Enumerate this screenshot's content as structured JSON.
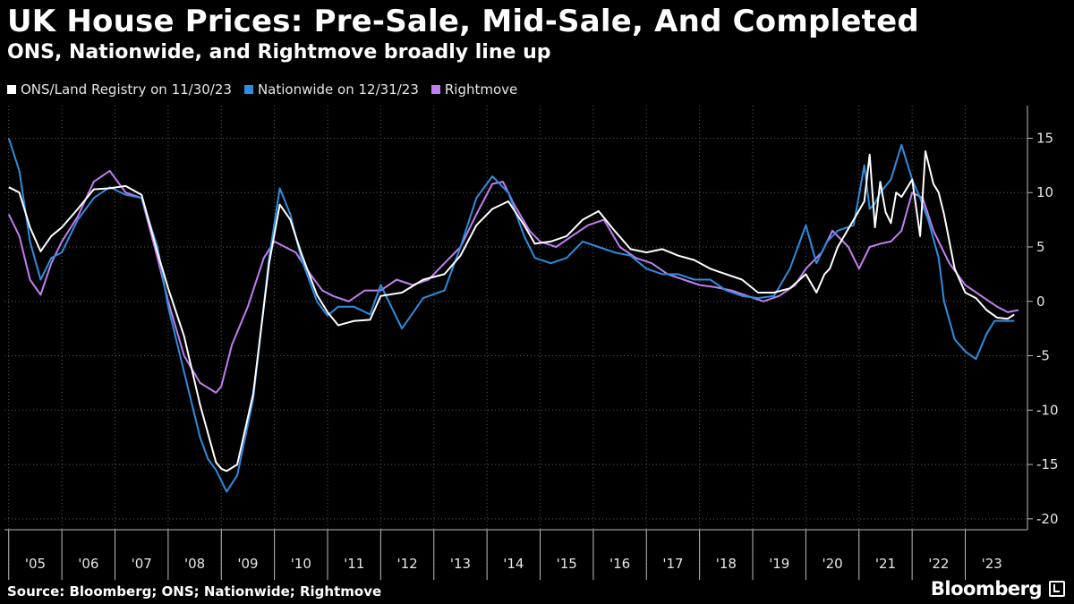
{
  "chart_data": {
    "type": "line",
    "title": "UK House Prices: Pre-Sale, Mid-Sale, And Completed",
    "subtitle": "ONS, Nationwide, and Rightmove broadly line up",
    "ylim": [
      -21,
      18
    ],
    "yticks": [
      15,
      10,
      5,
      0,
      -5,
      -10,
      -15,
      -20
    ],
    "ytick_labels": [
      "15",
      "10",
      "5",
      "0",
      "-5",
      "-10",
      "-15",
      "-20"
    ],
    "xlim": [
      2004.92,
      2024.17
    ],
    "x_tick_labels": [
      "'05",
      "'06",
      "'07",
      "'08",
      "'09",
      "'10",
      "'11",
      "'12",
      "'13",
      "'14",
      "'15",
      "'16",
      "'17",
      "'18",
      "'19",
      "'20",
      "'21",
      "'22",
      "'23"
    ],
    "x_tick_years": [
      2005,
      2006,
      2007,
      2008,
      2009,
      2010,
      2011,
      2012,
      2013,
      2014,
      2015,
      2016,
      2017,
      2018,
      2019,
      2020,
      2021,
      2022,
      2023
    ],
    "grid": true,
    "legend_position": "top-left",
    "series": [
      {
        "name": "ONS/Land Registry on 11/30/23",
        "color": "#ffffff",
        "x": [
          2005.0,
          2005.2,
          2005.4,
          2005.6,
          2005.8,
          2006.0,
          2006.3,
          2006.6,
          2006.9,
          2007.2,
          2007.5,
          2007.8,
          2008.0,
          2008.3,
          2008.6,
          2008.9,
          2009.0,
          2009.1,
          2009.3,
          2009.6,
          2009.9,
          2010.1,
          2010.3,
          2010.5,
          2010.8,
          2011.0,
          2011.2,
          2011.5,
          2011.8,
          2012.0,
          2012.4,
          2012.8,
          2013.2,
          2013.5,
          2013.8,
          2014.1,
          2014.4,
          2014.7,
          2014.9,
          2015.2,
          2015.5,
          2015.8,
          2016.1,
          2016.4,
          2016.7,
          2017.0,
          2017.3,
          2017.6,
          2017.9,
          2018.2,
          2018.5,
          2018.8,
          2019.1,
          2019.4,
          2019.7,
          2020.0,
          2020.2,
          2020.35,
          2020.45,
          2020.6,
          2020.9,
          2021.1,
          2021.2,
          2021.3,
          2021.4,
          2021.5,
          2021.6,
          2021.7,
          2021.8,
          2022.0,
          2022.15,
          2022.25,
          2022.4,
          2022.5,
          2022.6,
          2022.8,
          2023.0,
          2023.2,
          2023.4,
          2023.6,
          2023.8,
          2023.92
        ],
        "values": [
          10.5,
          10.0,
          6.8,
          4.6,
          6.0,
          6.8,
          8.5,
          10.3,
          10.4,
          10.6,
          9.8,
          4.5,
          1.2,
          -3.2,
          -9.5,
          -14.8,
          -15.4,
          -15.6,
          -15.0,
          -8.5,
          3.5,
          8.9,
          7.5,
          4.5,
          0.6,
          -1.0,
          -2.2,
          -1.8,
          -1.7,
          0.5,
          0.8,
          2.0,
          2.5,
          4.2,
          7.0,
          8.5,
          9.2,
          7.0,
          5.3,
          5.5,
          6.0,
          7.5,
          8.3,
          6.5,
          4.8,
          4.5,
          4.8,
          4.2,
          3.8,
          3.0,
          2.5,
          2.0,
          0.8,
          0.8,
          1.2,
          2.5,
          0.8,
          2.5,
          3.0,
          5.0,
          7.5,
          9.2,
          13.5,
          6.8,
          11.0,
          8.2,
          7.2,
          10.0,
          9.6,
          11.2,
          6.0,
          13.8,
          10.8,
          10.0,
          8.0,
          3.0,
          0.8,
          0.3,
          -0.8,
          -1.5,
          -1.6,
          -1.2
        ]
      },
      {
        "name": "Nationwide on 12/31/23",
        "color": "#2e8de0",
        "x": [
          2005.0,
          2005.2,
          2005.4,
          2005.6,
          2005.8,
          2006.0,
          2006.3,
          2006.6,
          2006.9,
          2007.2,
          2007.5,
          2007.8,
          2008.0,
          2008.3,
          2008.6,
          2008.75,
          2008.9,
          2009.0,
          2009.1,
          2009.3,
          2009.6,
          2009.9,
          2010.1,
          2010.3,
          2010.5,
          2010.8,
          2011.0,
          2011.2,
          2011.5,
          2011.8,
          2012.0,
          2012.4,
          2012.8,
          2013.2,
          2013.5,
          2013.8,
          2014.1,
          2014.4,
          2014.7,
          2014.9,
          2015.2,
          2015.5,
          2015.8,
          2016.1,
          2016.4,
          2016.7,
          2017.0,
          2017.3,
          2017.6,
          2017.9,
          2018.2,
          2018.5,
          2018.8,
          2019.1,
          2019.4,
          2019.7,
          2020.0,
          2020.2,
          2020.4,
          2020.6,
          2020.9,
          2021.1,
          2021.2,
          2021.3,
          2021.4,
          2021.6,
          2021.8,
          2022.0,
          2022.15,
          2022.3,
          2022.5,
          2022.6,
          2022.8,
          2023.0,
          2023.2,
          2023.4,
          2023.55,
          2023.7,
          2023.92
        ],
        "values": [
          15.0,
          12.0,
          5.5,
          2.0,
          4.0,
          4.5,
          7.5,
          9.5,
          10.5,
          9.8,
          9.5,
          5.0,
          -0.5,
          -6.5,
          -12.5,
          -14.5,
          -15.5,
          -16.5,
          -17.5,
          -16.0,
          -9.0,
          4.0,
          10.4,
          8.0,
          4.0,
          0.0,
          -1.3,
          -0.5,
          -0.5,
          -1.2,
          1.5,
          -2.5,
          0.3,
          1.0,
          5.0,
          9.5,
          11.5,
          10.0,
          6.0,
          4.0,
          3.5,
          4.0,
          5.5,
          5.0,
          4.5,
          4.2,
          3.0,
          2.5,
          2.5,
          2.0,
          2.0,
          1.0,
          0.5,
          0.3,
          0.5,
          3.0,
          7.0,
          3.5,
          5.5,
          6.5,
          7.0,
          12.5,
          8.5,
          9.0,
          10.0,
          11.2,
          14.4,
          11.2,
          9.5,
          7.5,
          4.0,
          0.0,
          -3.5,
          -4.6,
          -5.3,
          -3.0,
          -1.8,
          -1.8,
          -1.8
        ]
      },
      {
        "name": "Rightmove",
        "color": "#c07ff0",
        "x": [
          2005.0,
          2005.2,
          2005.4,
          2005.6,
          2005.8,
          2006.0,
          2006.3,
          2006.6,
          2006.9,
          2007.2,
          2007.5,
          2007.8,
          2008.0,
          2008.3,
          2008.6,
          2008.9,
          2009.0,
          2009.2,
          2009.5,
          2009.8,
          2010.0,
          2010.2,
          2010.4,
          2010.6,
          2010.9,
          2011.1,
          2011.4,
          2011.7,
          2012.0,
          2012.3,
          2012.6,
          2012.9,
          2013.2,
          2013.5,
          2013.8,
          2014.1,
          2014.3,
          2014.5,
          2014.8,
          2015.0,
          2015.3,
          2015.6,
          2015.9,
          2016.2,
          2016.5,
          2016.8,
          2017.1,
          2017.4,
          2017.7,
          2018.0,
          2018.3,
          2018.6,
          2018.9,
          2019.2,
          2019.5,
          2019.8,
          2020.0,
          2020.3,
          2020.5,
          2020.8,
          2021.0,
          2021.2,
          2021.4,
          2021.6,
          2021.8,
          2022.0,
          2022.2,
          2022.4,
          2022.7,
          2023.0,
          2023.3,
          2023.6,
          2023.8,
          2024.0
        ],
        "values": [
          8.0,
          6.0,
          2.0,
          0.6,
          3.5,
          5.5,
          7.8,
          11.0,
          12.0,
          10.0,
          9.5,
          4.0,
          0.0,
          -5.0,
          -7.5,
          -8.4,
          -7.8,
          -4.0,
          -0.5,
          4.0,
          5.5,
          5.0,
          4.5,
          3.0,
          1.0,
          0.5,
          0.0,
          1.0,
          1.0,
          2.0,
          1.5,
          2.0,
          3.5,
          5.0,
          8.0,
          10.8,
          11.0,
          9.0,
          6.5,
          5.5,
          5.0,
          6.0,
          7.0,
          7.5,
          5.0,
          4.0,
          3.5,
          2.5,
          2.0,
          1.5,
          1.3,
          1.0,
          0.5,
          0.0,
          0.5,
          1.5,
          3.0,
          4.5,
          6.5,
          5.0,
          3.0,
          5.0,
          5.3,
          5.5,
          6.5,
          10.0,
          9.5,
          6.5,
          3.5,
          1.5,
          0.5,
          -0.5,
          -1.0,
          -0.8
        ]
      }
    ]
  },
  "footer": {
    "source": "Source: Bloomberg; ONS; Nationwide; Rightmove",
    "brand": "Bloomberg",
    "brand_icon": "bloomberg-logo-icon"
  }
}
